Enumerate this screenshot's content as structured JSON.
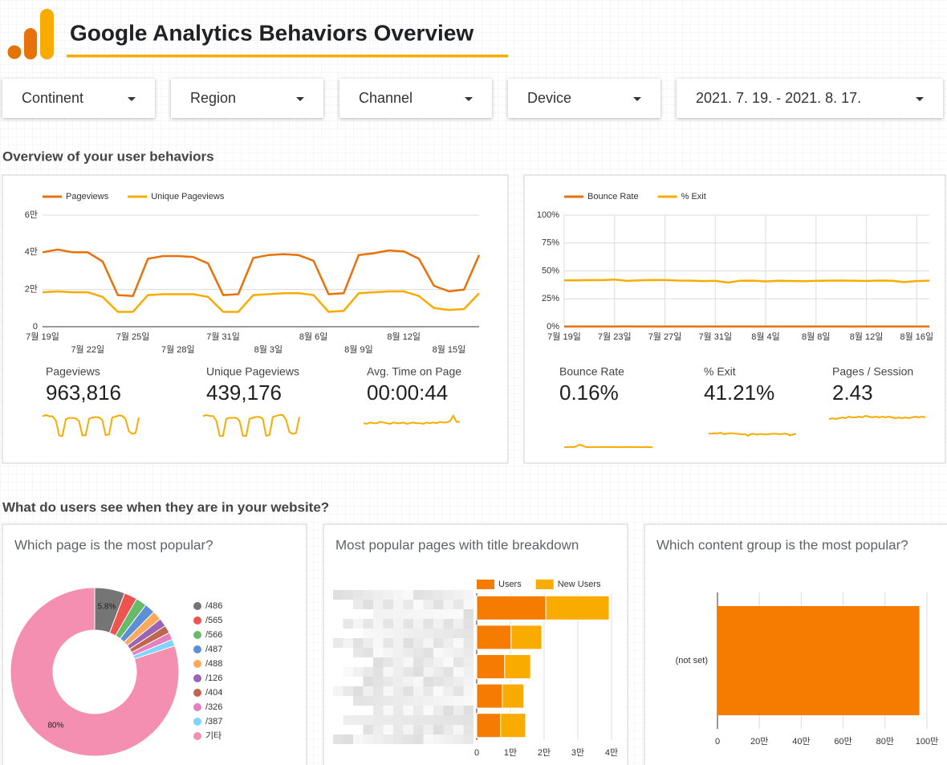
{
  "header": {
    "title": "Google Analytics Behaviors Overview"
  },
  "filters": [
    "Continent",
    "Region",
    "Channel",
    "Device",
    "2021. 7. 19. - 2021. 8. 17."
  ],
  "sections": [
    "Overview of your user behaviors",
    "What do users see when they are in your website?"
  ],
  "scorecards": [
    {
      "label": "Pageviews",
      "value": "963,816"
    },
    {
      "label": "Unique Pageviews",
      "value": "439,176"
    },
    {
      "label": "Avg. Time on Page",
      "value": "00:00:44",
      "trend": [
        44,
        43,
        45,
        44,
        44,
        46,
        45,
        44,
        43,
        45,
        44,
        44,
        45,
        43,
        44,
        45,
        44,
        44,
        43,
        45,
        44,
        45,
        44,
        46,
        45,
        45,
        47,
        55,
        46,
        46
      ]
    },
    {
      "label": "Bounce Rate",
      "value": "0.16%"
    },
    {
      "label": "% Exit",
      "value": "41.21%"
    },
    {
      "label": "Pages / Session",
      "value": "2.43",
      "trend": [
        2.42,
        2.43,
        2.42,
        2.43,
        2.44,
        2.43,
        2.45,
        2.44,
        2.44,
        2.45,
        2.44,
        2.46,
        2.45,
        2.44,
        2.45,
        2.44,
        2.45,
        2.44,
        2.45,
        2.44,
        2.43,
        2.44,
        2.43,
        2.44,
        2.43,
        2.44,
        2.45,
        2.44,
        2.45,
        2.44
      ]
    }
  ],
  "chart_data": [
    {
      "type": "line",
      "categories": [
        "7월 19일",
        null,
        null,
        "7월 22일",
        null,
        null,
        "7월 25일",
        null,
        null,
        "7월 28일",
        null,
        null,
        "7월 31일",
        null,
        null,
        "8월 3일",
        null,
        null,
        "8월 6일",
        null,
        null,
        "8월 9일",
        null,
        null,
        "8월 12일",
        null,
        null,
        "8월 15일",
        null,
        null
      ],
      "series": [
        {
          "name": "Pageviews",
          "color": "#e8710a",
          "values": [
            40000,
            41500,
            40000,
            40000,
            35000,
            17000,
            16500,
            36500,
            38000,
            38000,
            37500,
            34000,
            17000,
            17500,
            37000,
            38500,
            39000,
            38500,
            35500,
            17500,
            18000,
            38500,
            39500,
            41000,
            40500,
            36500,
            22000,
            19000,
            20000,
            38500
          ]
        },
        {
          "name": "Unique Pageviews",
          "color": "#f9ab00",
          "values": [
            18500,
            19000,
            18500,
            18500,
            16000,
            8000,
            8000,
            17000,
            17500,
            17500,
            17500,
            16000,
            8000,
            8000,
            17000,
            17500,
            18000,
            18000,
            17000,
            8000,
            8500,
            18000,
            18500,
            19000,
            19000,
            16500,
            10000,
            9000,
            9500,
            18000
          ]
        }
      ],
      "ylim": [
        0,
        60000
      ],
      "yticks": [
        0,
        {
          "value": 20000,
          "label": "2만"
        },
        {
          "value": 40000,
          "label": "4만"
        },
        {
          "value": 60000,
          "label": "6만"
        }
      ],
      "grid": true,
      "legend": "top-left"
    },
    {
      "type": "line",
      "categories": [
        "7월 19일",
        null,
        null,
        null,
        "7월 23일",
        null,
        null,
        null,
        "7월 27일",
        null,
        null,
        null,
        "7월 31일",
        null,
        null,
        null,
        "8월 4일",
        null,
        null,
        null,
        "8월 8일",
        null,
        null,
        null,
        "8월 12일",
        null,
        null,
        null,
        "8월 16일",
        null
      ],
      "series": [
        {
          "name": "Bounce Rate",
          "color": "#e8710a",
          "values": [
            0.15,
            0.15,
            0.16,
            0.15,
            0.2,
            0.3,
            0.25,
            0.16,
            0.15,
            0.15,
            0.16,
            0.15,
            0.15,
            0.16,
            0.15,
            0.15,
            0.16,
            0.15,
            0.16,
            0.15,
            0.15,
            0.16,
            0.15,
            0.15,
            0.16,
            0.15,
            0.15,
            0.16,
            0.15,
            0.15
          ]
        },
        {
          "name": "% Exit",
          "color": "#f9ab00",
          "values": [
            41.5,
            41.6,
            41.8,
            41.7,
            42.3,
            41.1,
            41.5,
            41.9,
            41.8,
            41.4,
            41.3,
            40.9,
            41.1,
            39.6,
            41.2,
            41.3,
            40.6,
            41.2,
            41.0,
            40.8,
            41.1,
            41.3,
            41.4,
            41.2,
            41.0,
            41.4,
            41.2,
            40.0,
            40.9,
            41.3
          ]
        }
      ],
      "ylim": [
        0,
        100
      ],
      "yticks": [
        {
          "value": 0,
          "label": "0%"
        },
        {
          "value": 25,
          "label": "25%"
        },
        {
          "value": 50,
          "label": "50%"
        },
        {
          "value": 75,
          "label": "75%"
        },
        {
          "value": 100,
          "label": "100%"
        }
      ],
      "grid": true,
      "legend": "top-left"
    },
    {
      "type": "pie",
      "donut": true,
      "title": "Which page is the most popular?",
      "categories": [
        "/486",
        "/565",
        "/566",
        "/487",
        "/488",
        "/126",
        "/404",
        "/326",
        "/387",
        "기타"
      ],
      "values": [
        5.8,
        2.5,
        2.1,
        2.0,
        1.8,
        1.6,
        1.5,
        1.4,
        1.3,
        80
      ],
      "value_labels": [
        "5.8%",
        null,
        null,
        null,
        null,
        null,
        null,
        null,
        null,
        "80%"
      ],
      "colors": [
        "#757575",
        "#ef5350",
        "#66bb6a",
        "#5c8fd6",
        "#ffa95c",
        "#9c64b4",
        "#bf6650",
        "#e67fc0",
        "#81d4fa",
        "#f48fb1"
      ],
      "legend": "right"
    },
    {
      "type": "hbar",
      "stacked": true,
      "title": "Most popular pages with title breakdown",
      "categories": [
        null,
        null,
        null,
        null,
        null
      ],
      "series": [
        {
          "name": "Users",
          "color": "#f57c00",
          "values": [
            20500,
            10200,
            8300,
            7600,
            7100
          ]
        },
        {
          "name": "New Users",
          "color": "#f9ab00",
          "values": [
            18800,
            9100,
            7700,
            6400,
            7400
          ]
        }
      ],
      "xlim": [
        0,
        40000
      ],
      "xticks": [
        0,
        {
          "value": 10000,
          "label": "1만"
        },
        {
          "value": 20000,
          "label": "2만"
        },
        {
          "value": 30000,
          "label": "3만"
        },
        {
          "value": 40000,
          "label": "4만"
        }
      ],
      "grid": true,
      "legend": "top"
    },
    {
      "type": "hbar",
      "title": "Which content group is the most popular?",
      "categories": [
        "(not set)"
      ],
      "values": [
        963816
      ],
      "color": "#f57c00",
      "xlim": [
        0,
        1000000
      ],
      "xticks": [
        0,
        {
          "value": 200000,
          "label": "20만"
        },
        {
          "value": 400000,
          "label": "40만"
        },
        {
          "value": 600000,
          "label": "60만"
        },
        {
          "value": 800000,
          "label": "80만"
        },
        {
          "value": 1000000,
          "label": "100만"
        }
      ],
      "grid": true
    }
  ]
}
